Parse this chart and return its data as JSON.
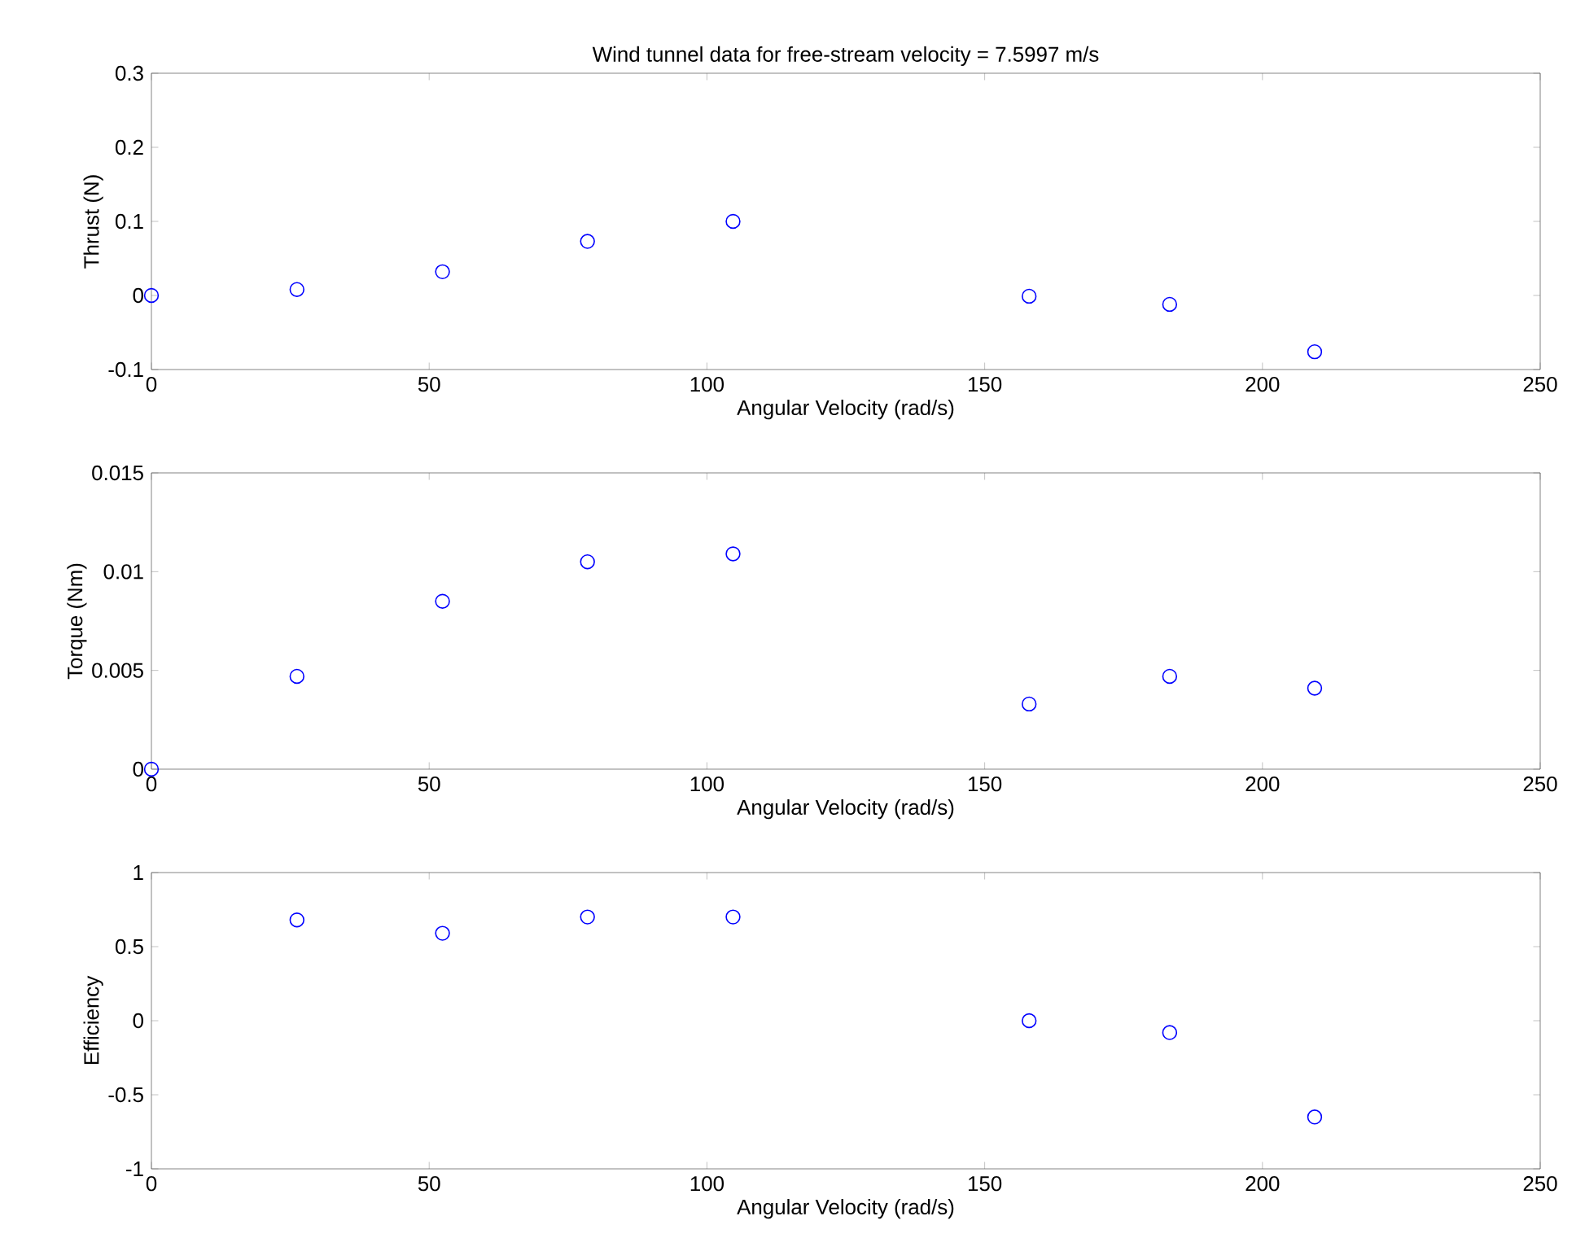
{
  "chart_data": [
    {
      "type": "scatter",
      "title": "Wind tunnel data for free-stream velocity = 7.5997 m/s",
      "xlabel": "Angular Velocity (rad/s)",
      "ylabel": "Thrust (N)",
      "marker": "circle",
      "series": [
        {
          "color": "#0000ff",
          "x": [
            0,
            26.2,
            52.4,
            78.5,
            104.7,
            158,
            183.3,
            209.4
          ],
          "values": [
            0,
            0.008,
            0.032,
            0.073,
            0.1,
            -0.001,
            -0.012,
            -0.076
          ]
        }
      ],
      "xlim": [
        0,
        250
      ],
      "xticks": [
        0,
        50,
        100,
        150,
        200,
        250
      ],
      "ylim": [
        -0.1,
        0.3
      ],
      "yticks": [
        -0.1,
        0,
        0.1,
        0.2,
        0.3
      ]
    },
    {
      "type": "scatter",
      "xlabel": "Angular Velocity (rad/s)",
      "ylabel": "Torque (Nm)",
      "marker": "circle",
      "series": [
        {
          "color": "#0000ff",
          "x": [
            0,
            26.2,
            52.4,
            78.5,
            104.7,
            158,
            183.3,
            209.4
          ],
          "values": [
            0,
            0.0047,
            0.0085,
            0.0105,
            0.0109,
            0.0033,
            0.0047,
            0.0041
          ]
        }
      ],
      "xlim": [
        0,
        250
      ],
      "xticks": [
        0,
        50,
        100,
        150,
        200,
        250
      ],
      "ylim": [
        0,
        0.015
      ],
      "yticks": [
        0,
        0.005,
        0.01,
        0.015
      ]
    },
    {
      "type": "scatter",
      "xlabel": "Angular Velocity (rad/s)",
      "ylabel": "Efficiency",
      "marker": "circle",
      "series": [
        {
          "color": "#0000ff",
          "x": [
            26.2,
            52.4,
            78.5,
            104.7,
            158,
            183.3,
            209.4
          ],
          "values": [
            0.68,
            0.59,
            0.7,
            0.7,
            0,
            -0.08,
            -0.65
          ]
        }
      ],
      "xlim": [
        0,
        250
      ],
      "xticks": [
        0,
        50,
        100,
        150,
        200,
        250
      ],
      "ylim": [
        -1,
        1
      ],
      "yticks": [
        -1,
        -0.5,
        0,
        0.5,
        1
      ]
    }
  ]
}
